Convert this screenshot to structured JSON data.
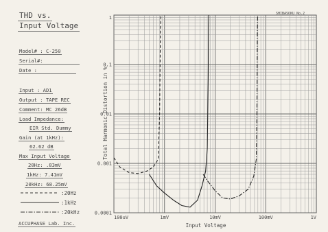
{
  "sheet": {
    "title_line1": "THD vs.",
    "title_line2": "Input Voltage",
    "model": "Model# : C-250",
    "serial": "Serial#:",
    "date": "Date   :",
    "input": "Input  : AD1",
    "output": "Output : TAPE REC",
    "comment": "Comment: MC 26dB",
    "load_label": "Load Impedance:",
    "load_value": "EIR Std. Dummy",
    "gain_label": "Gain (at 1kHz):",
    "gain_value": "62.62  dB",
    "max_label": "Max Input Voltage",
    "max_20": "20Hz:   .83mV",
    "max_1k": "1kHz:   7.41mV",
    "max_20k": "20kHz:  68.25mV",
    "legend_20": ":20Hz",
    "legend_1k": ":1kHz",
    "legend_20k": ":20kHz",
    "footer": "ACCUPHASE Lab. Inc.",
    "corner_mark": "SHIBASOKU No.2"
  },
  "chart_data": {
    "type": "line",
    "xlabel": "Input Voltage",
    "ylabel": "Total Harmonic Distortion in %",
    "x_scale": "log",
    "y_scale": "log",
    "xlim_mV": [
      0.1,
      1000
    ],
    "ylim_percent": [
      0.0001,
      1
    ],
    "x_ticks": [
      "100uV",
      "1mV",
      "10mV",
      "100mV",
      "1V"
    ],
    "y_ticks": [
      "1",
      "0.1",
      "0.01",
      "0.001",
      "0.0001"
    ],
    "grid": true,
    "series": [
      {
        "name": ":20Hz",
        "style": "dashed",
        "points_mV_percent": [
          [
            0.1,
            0.0013
          ],
          [
            0.13,
            0.00085
          ],
          [
            0.2,
            0.00065
          ],
          [
            0.3,
            0.00062
          ],
          [
            0.45,
            0.0007
          ],
          [
            0.6,
            0.00085
          ],
          [
            0.75,
            0.0012
          ],
          [
            0.8,
            0.01
          ],
          [
            0.83,
            0.5
          ],
          [
            0.85,
            1
          ]
        ]
      },
      {
        "name": ":1kHz",
        "style": "solid",
        "points_mV_percent": [
          [
            0.5,
            0.0006
          ],
          [
            0.7,
            0.00035
          ],
          [
            1.0,
            0.00025
          ],
          [
            1.5,
            0.00018
          ],
          [
            2.2,
            0.00014
          ],
          [
            3.2,
            0.00013
          ],
          [
            4.5,
            0.00018
          ],
          [
            5.5,
            0.00035
          ],
          [
            6.5,
            0.0007
          ],
          [
            7.0,
            0.002
          ],
          [
            7.3,
            0.05
          ],
          [
            7.41,
            0.6
          ],
          [
            7.5,
            1
          ]
        ]
      },
      {
        "name": ":20kHz",
        "style": "dash-dot",
        "points_mV_percent": [
          [
            5.8,
            0.0006
          ],
          [
            7.0,
            0.00045
          ],
          [
            10,
            0.00028
          ],
          [
            14,
            0.0002
          ],
          [
            20,
            0.00019
          ],
          [
            30,
            0.00022
          ],
          [
            45,
            0.0003
          ],
          [
            58,
            0.00055
          ],
          [
            65,
            0.0012
          ],
          [
            67,
            0.01
          ],
          [
            68.25,
            0.5
          ],
          [
            69,
            1
          ]
        ]
      }
    ]
  }
}
